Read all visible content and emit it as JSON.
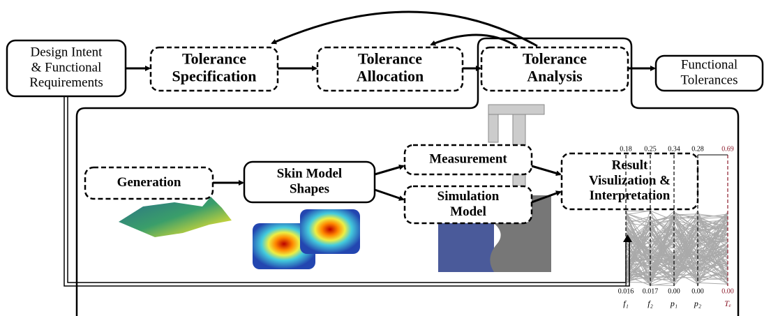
{
  "nodes": [
    {
      "lines": [
        "Design Intent",
        "& Functional",
        "Requirements"
      ]
    },
    {
      "lines": [
        "Tolerance",
        "Specification"
      ]
    },
    {
      "lines": [
        "Tolerance",
        "Allocation"
      ]
    },
    {
      "lines": [
        "Tolerance",
        "Analysis"
      ]
    },
    {
      "lines": [
        "Functional",
        "Tolerances"
      ]
    },
    {
      "lines": [
        "Generation"
      ]
    },
    {
      "lines": [
        "Skin Model",
        "Shapes"
      ]
    },
    {
      "lines": [
        "Measurement"
      ]
    },
    {
      "lines": [
        "Simulation",
        "Model"
      ]
    },
    {
      "lines": [
        "Result",
        "Visulization &",
        "Interpretation"
      ]
    }
  ],
  "parallel_plot": {
    "top": [
      "0.18",
      "0.25",
      "0.34",
      "0.28",
      "0.69"
    ],
    "bottom": [
      "0.016",
      "0.017",
      "0.00",
      "0.00",
      "0.00"
    ],
    "axes": [
      "f₁",
      "f₂",
      "p₁",
      "p₂",
      "Tₑ"
    ]
  }
}
